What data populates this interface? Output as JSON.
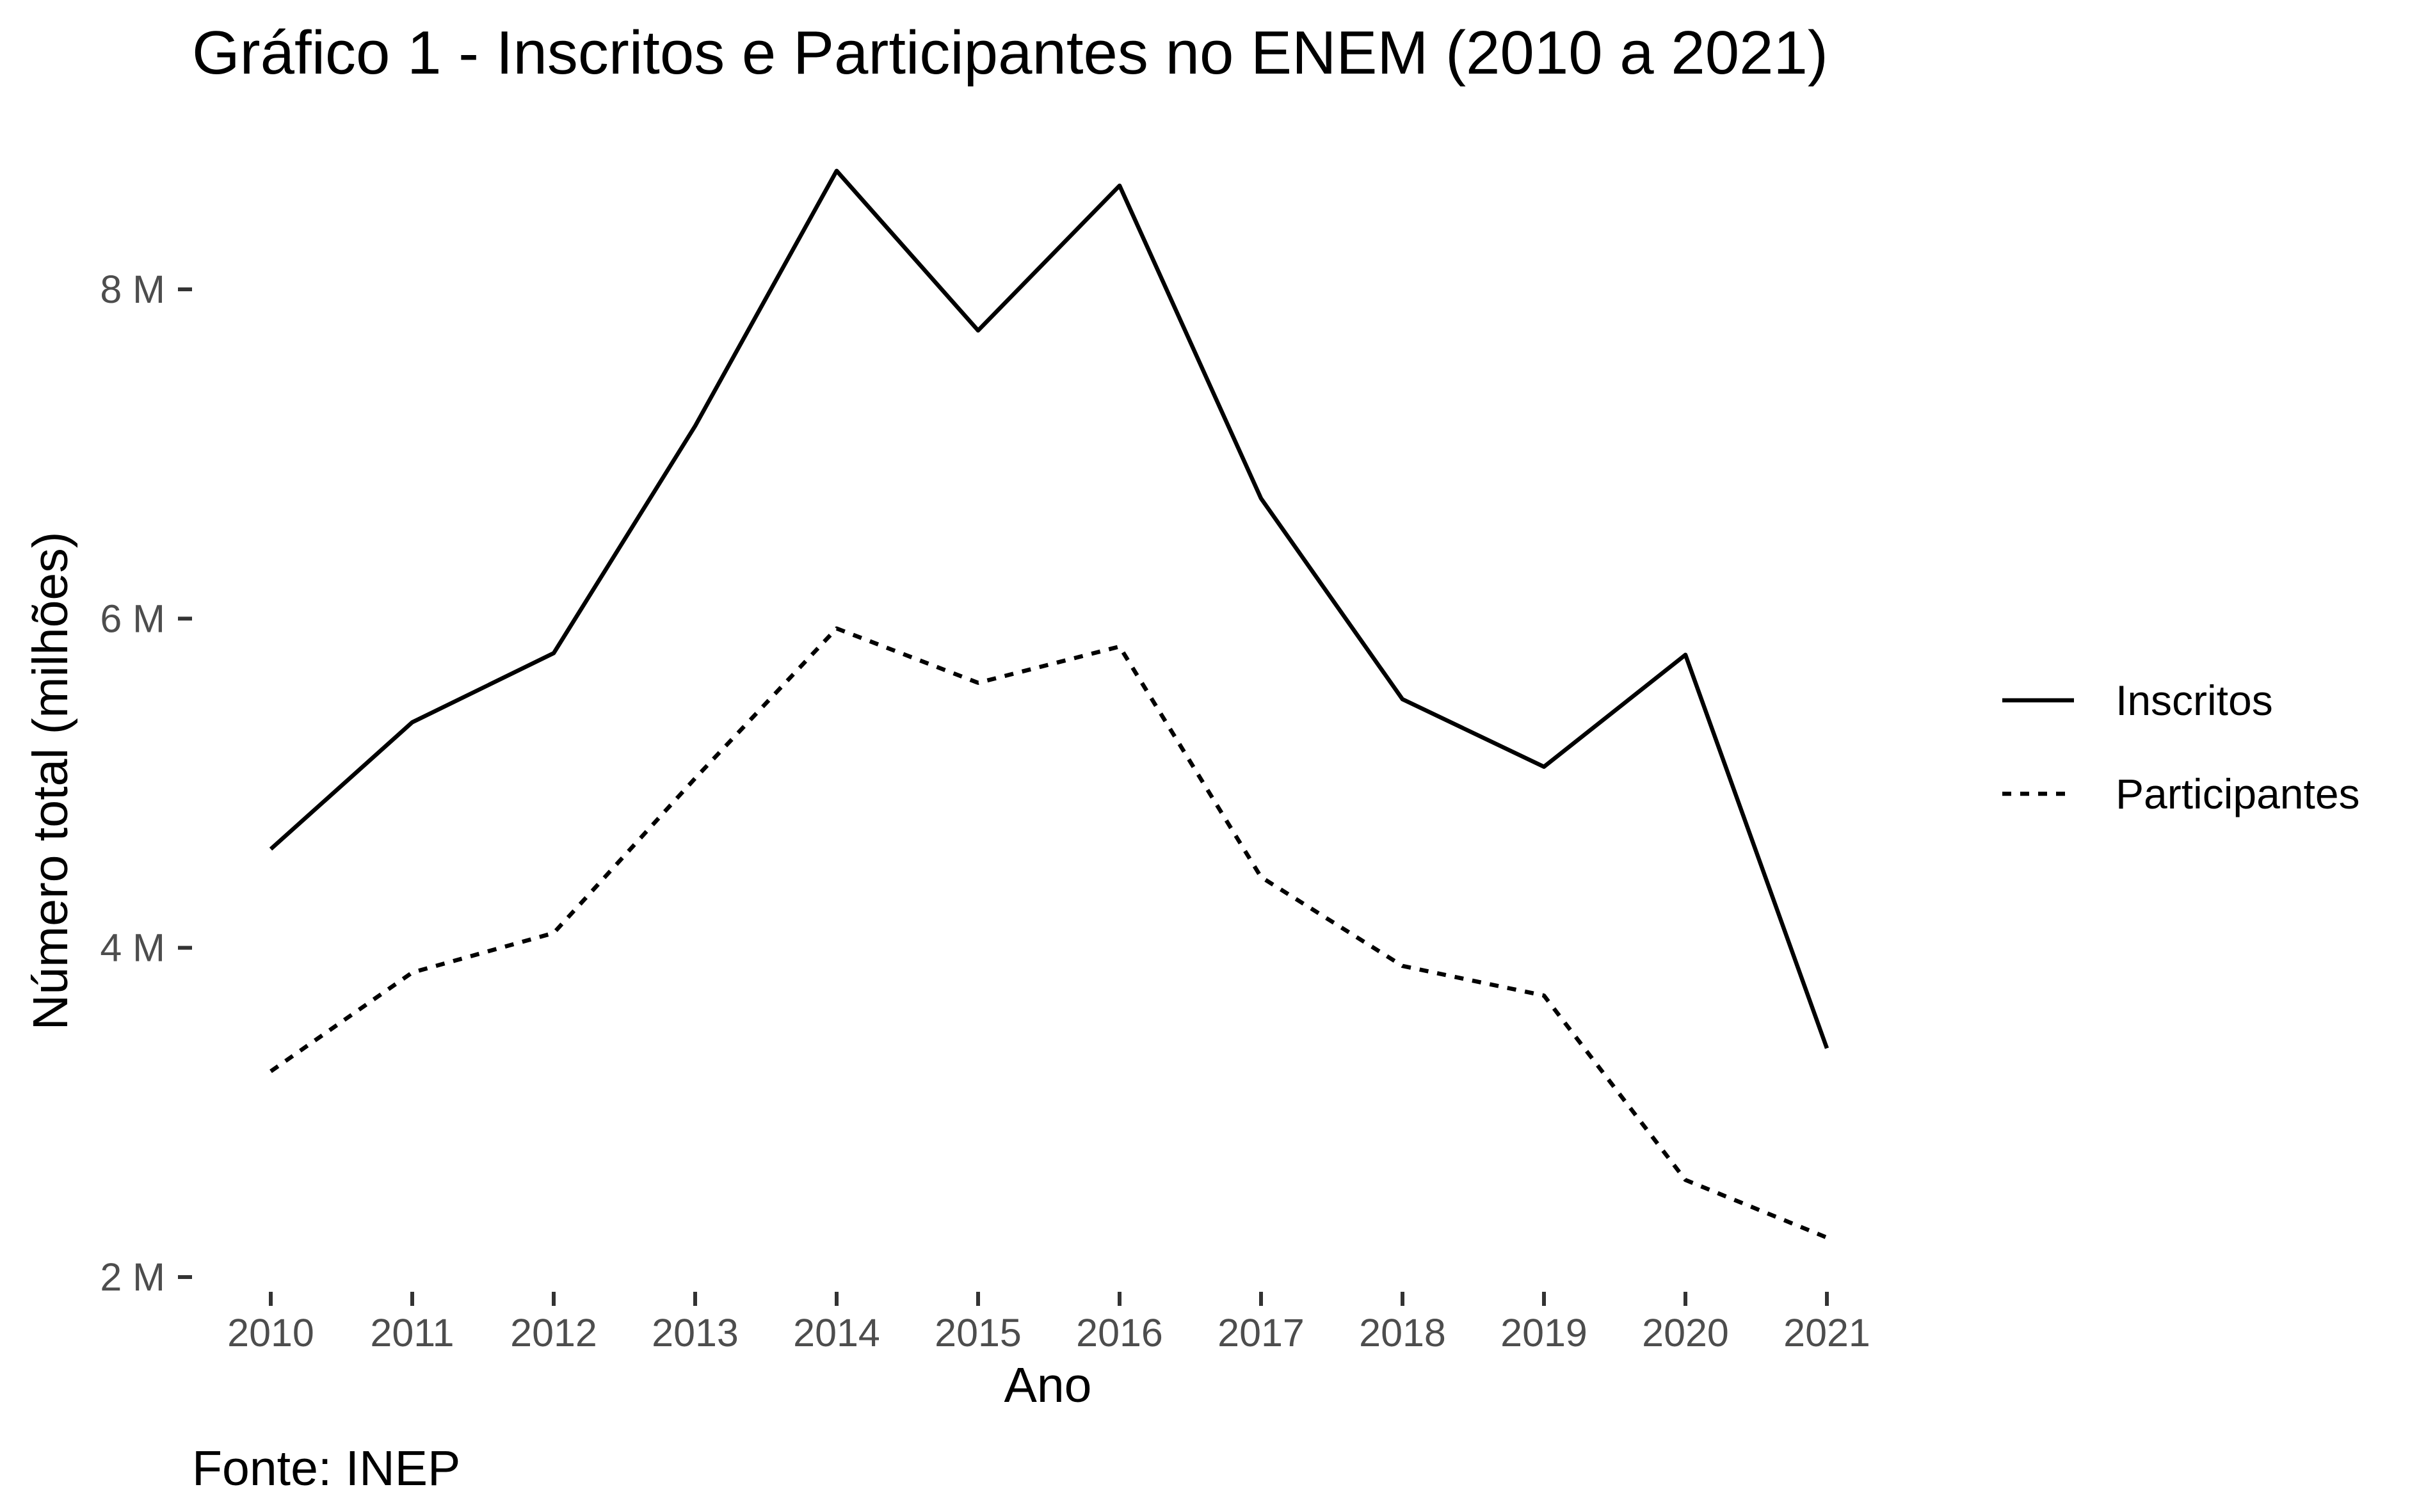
{
  "chart_data": {
    "type": "line",
    "title": "Gráfico 1 - Inscritos e Participantes no ENEM (2010 a 2021)",
    "xlabel": "Ano",
    "ylabel": "Número total (milhões)",
    "caption": "Fonte: INEP",
    "x": [
      2010,
      2011,
      2012,
      2013,
      2014,
      2015,
      2016,
      2017,
      2018,
      2019,
      2020,
      2021
    ],
    "x_tick_labels": [
      "2010",
      "2011",
      "2012",
      "2013",
      "2014",
      "2015",
      "2016",
      "2017",
      "2018",
      "2019",
      "2020",
      "2021"
    ],
    "y_ticks": [
      2000000,
      4000000,
      6000000,
      8000000
    ],
    "y_tick_labels": [
      "2 M",
      "4 M",
      "6 M",
      "8 M"
    ],
    "ylim": [
      2000000,
      8800000
    ],
    "grid": false,
    "legend_position": "right",
    "series": [
      {
        "name": "Inscritos",
        "line_style": "solid",
        "color": "#000000",
        "values": [
          4600000,
          5370000,
          5790000,
          7170000,
          8720000,
          7750000,
          8630000,
          6730000,
          5510000,
          5100000,
          5780000,
          3390000
        ]
      },
      {
        "name": "Participantes",
        "line_style": "dotted",
        "color": "#000000",
        "values": [
          3250000,
          3850000,
          4090000,
          5030000,
          5940000,
          5610000,
          5830000,
          4430000,
          3890000,
          3710000,
          2590000,
          2240000
        ]
      }
    ]
  }
}
